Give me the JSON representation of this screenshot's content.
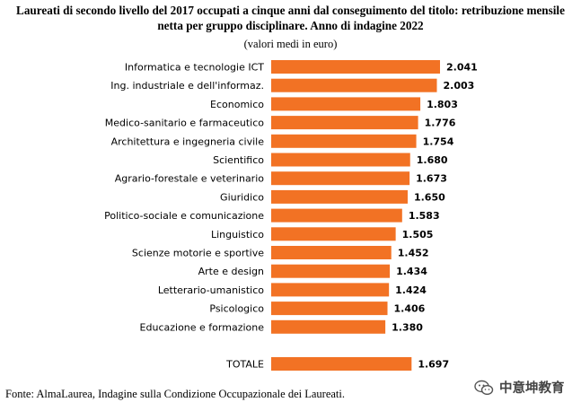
{
  "header": {
    "title_line1": "Laureati di secondo livello del 2017 occupati a cinque anni dal conseguimento del titolo: retribuzione mensile",
    "title_line2": "netta per gruppo disciplinare. Anno di indagine 2022",
    "subtitle": "(valori medi in euro)"
  },
  "chart_data": {
    "type": "bar",
    "orientation": "horizontal",
    "categories": [
      "Informatica e tecnologie ICT",
      "Ing. industriale e dell'informaz.",
      "Economico",
      "Medico-sanitario e farmaceutico",
      "Architettura e ingegneria civile",
      "Scientifico",
      "Agrario-forestale e veterinario",
      "Giuridico",
      "Politico-sociale e comunicazione",
      "Linguistico",
      "Scienze motorie e sportive",
      "Arte e design",
      "Letterario-umanistico",
      "Psicologico",
      "Educazione e formazione",
      "TOTALE"
    ],
    "values": [
      2041,
      2003,
      1803,
      1776,
      1754,
      1680,
      1673,
      1650,
      1583,
      1505,
      1452,
      1434,
      1424,
      1406,
      1380,
      1697
    ],
    "value_labels": [
      "2.041",
      "2.003",
      "1.803",
      "1.776",
      "1.754",
      "1.680",
      "1.673",
      "1.650",
      "1.583",
      "1.505",
      "1.452",
      "1.434",
      "1.424",
      "1.406",
      "1.380",
      "1.697"
    ],
    "bar_color": "#f27224",
    "grid": false,
    "legend": "none"
  },
  "footer": {
    "source": "Fonte: AlmaLaurea, Indagine sulla Condizione Occupazionale dei Laureati.",
    "watermark": "中意坤教育",
    "watermark_icon": "wechat-icon"
  }
}
